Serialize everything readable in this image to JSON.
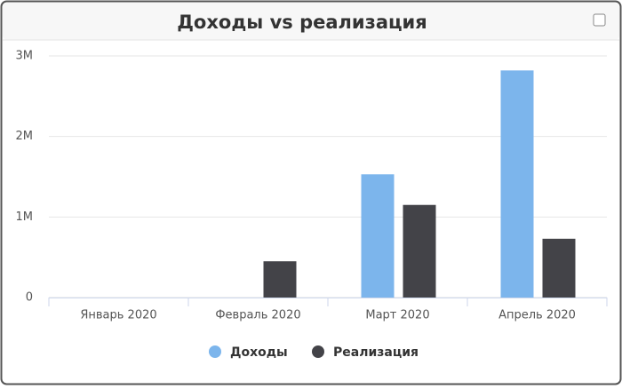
{
  "chart_data": {
    "type": "bar",
    "title": "Доходы vs реализация",
    "categories": [
      "Январь 2020",
      "Февраль 2020",
      "Март 2020",
      "Апрель 2020"
    ],
    "series": [
      {
        "name": "Доходы",
        "color": "#7cb5ec",
        "values": [
          0,
          0,
          1530000,
          2820000
        ]
      },
      {
        "name": "Реализация",
        "color": "#434348",
        "values": [
          0,
          450000,
          1150000,
          730000
        ]
      }
    ],
    "ylim": [
      0,
      3000000
    ],
    "yticks": [
      0,
      {
        "value": 1000000,
        "label": "1M"
      },
      {
        "value": 2000000,
        "label": "2M"
      },
      {
        "value": 3000000,
        "label": "3M"
      }
    ],
    "grid": true,
    "legend": "bottom"
  }
}
